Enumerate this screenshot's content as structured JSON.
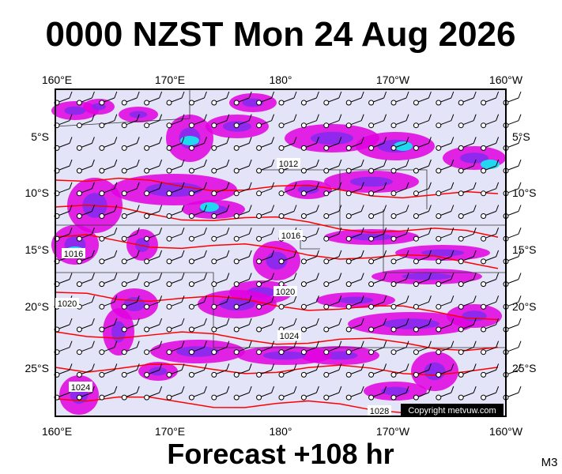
{
  "header": {
    "title": "0000 NZST Mon 24 Aug 2026"
  },
  "map": {
    "top_lon_labels": [
      "160°E",
      "170°E",
      "180°",
      "170°W",
      "160°W"
    ],
    "bottom_lon_labels": [
      "160°E",
      "170°E",
      "180°",
      "170°W",
      "160°W"
    ],
    "left_lat_labels": [
      "5°S",
      "10°S",
      "15°S",
      "20°S",
      "25°S"
    ],
    "right_lat_labels": [
      "5°S",
      "10°S",
      "15°S",
      "20°S",
      "25°S"
    ],
    "contour_labels": [
      "1012",
      "1016",
      "1016",
      "1020",
      "1020",
      "1024",
      "1024",
      "1028"
    ],
    "copyright": "Copyright metvuw.com"
  },
  "footer": {
    "caption": "Forecast +108 hr",
    "code": "M3"
  }
}
